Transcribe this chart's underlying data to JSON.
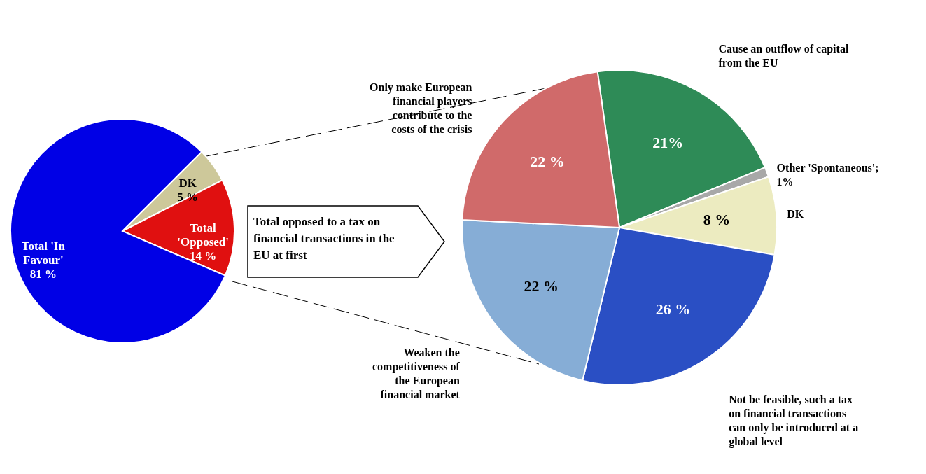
{
  "chart_data": [
    {
      "type": "pie",
      "categories": [
        "DK",
        "Total 'Opposed'",
        "Total 'In Favour'"
      ],
      "values": [
        5,
        14,
        81
      ],
      "colors": [
        "#cdc89a",
        "#e01010",
        "#0000e6"
      ],
      "value_labels": [
        "5 %",
        "14 %",
        "81 %"
      ],
      "annotations": [
        "Total opposed to a tax on financial transactions in the EU at first"
      ]
    },
    {
      "type": "pie",
      "categories": [
        "Cause an outflow of capital from the EU",
        "Other 'Spontaneous'; 1%",
        "DK",
        "Not be feasible, such a tax on financial transactions can only be introduced at a global level",
        "Weaken the competitiveness of the European financial market",
        "Only make European financial players contribute to the costs of the crisis"
      ],
      "values": [
        21,
        1,
        8,
        26,
        22,
        22
      ],
      "colors": [
        "#2e8b57",
        "#a8a8a8",
        "#ecebc0",
        "#2a4fc4",
        "#86add6",
        "#d06a6a"
      ],
      "value_labels": [
        "21%",
        null,
        "8 %",
        "26 %",
        "22 %",
        "22 %"
      ]
    }
  ]
}
